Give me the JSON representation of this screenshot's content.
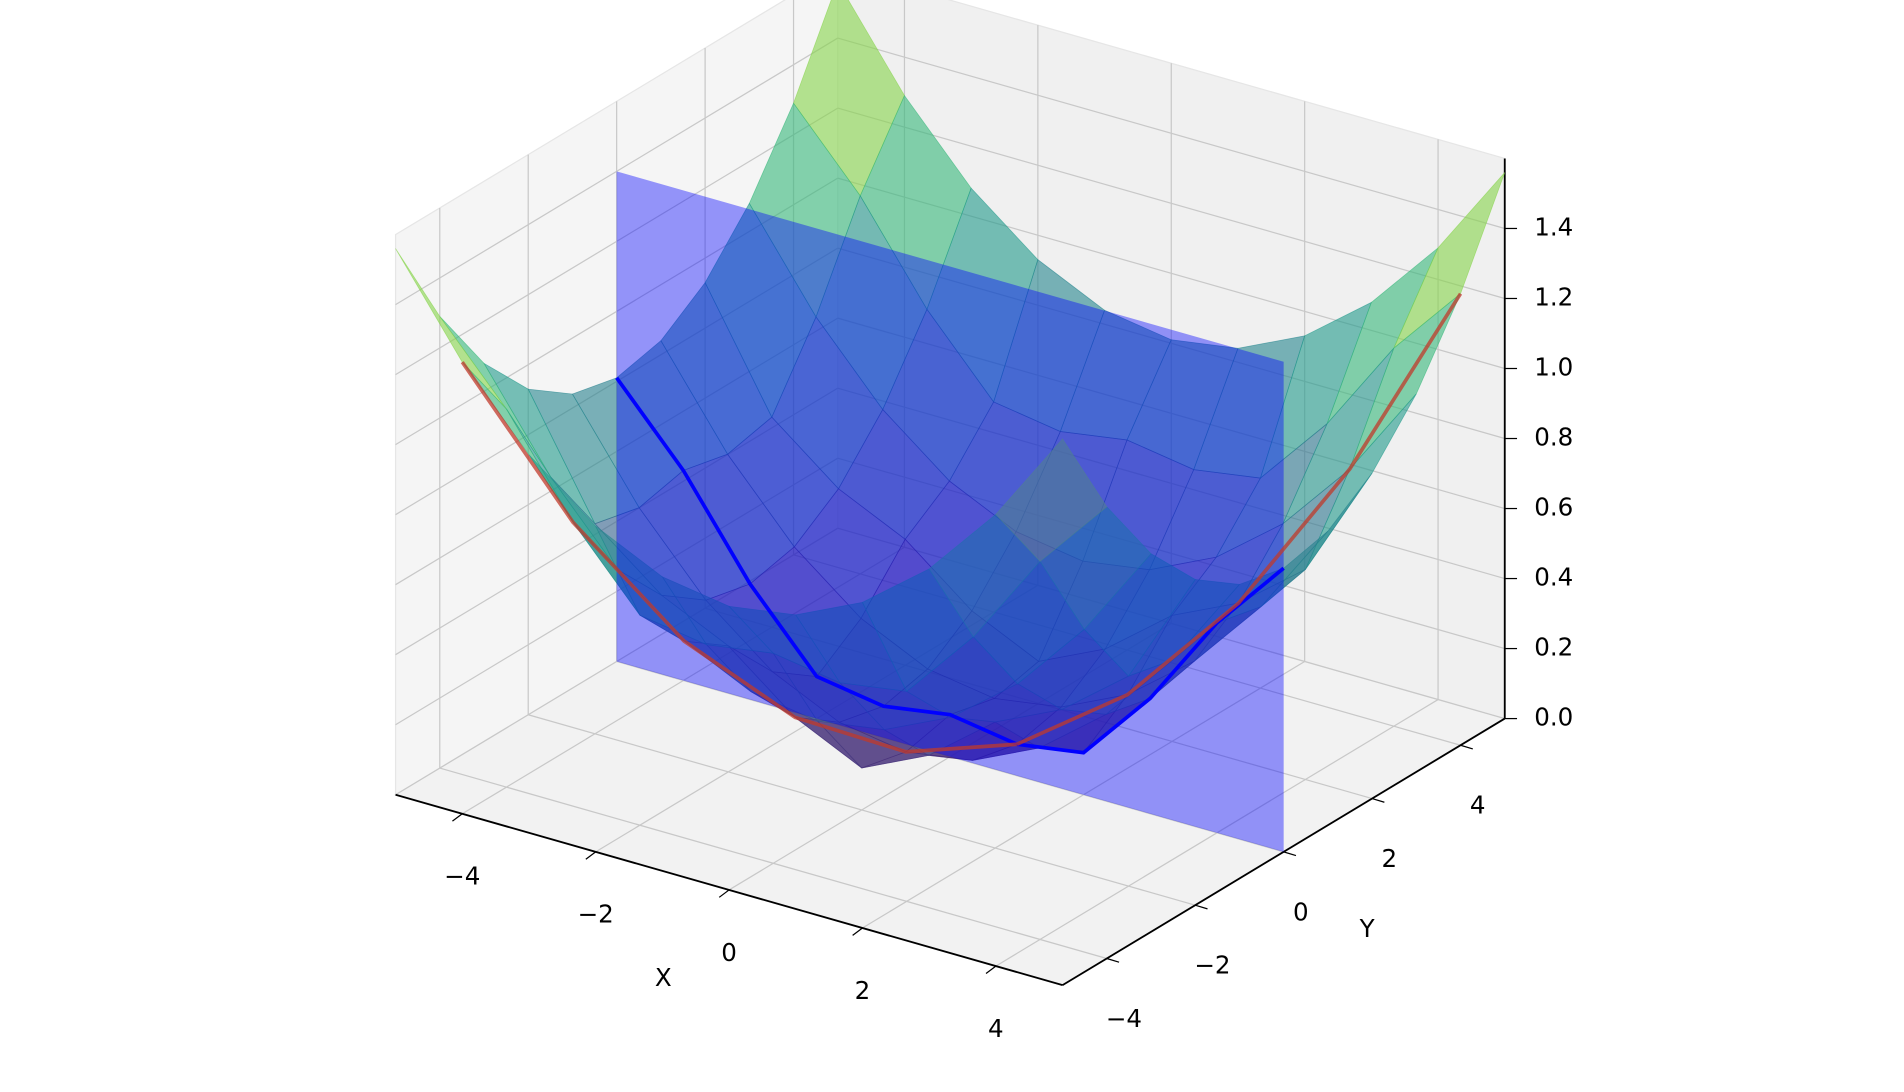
{
  "chart_data": {
    "type": "surface",
    "xlabel": "X",
    "ylabel": "Y",
    "x": [
      -5,
      -4,
      -3,
      -2,
      -1,
      0,
      1,
      2,
      3,
      4,
      5
    ],
    "y": [
      -5,
      -4,
      -3,
      -2,
      -1,
      0,
      1,
      2,
      3,
      4,
      5
    ],
    "z": [
      [
        1.56,
        1.29,
        1.08,
        0.93,
        0.84,
        0.81,
        0.84,
        0.93,
        1.08,
        1.29,
        1.56
      ],
      [
        1.29,
        1.08,
        0.81,
        0.6,
        0.57,
        0.6,
        0.57,
        0.6,
        0.81,
        1.08,
        1.29
      ],
      [
        1.08,
        0.81,
        0.6,
        0.45,
        0.36,
        0.33,
        0.36,
        0.45,
        0.6,
        0.81,
        1.08
      ],
      [
        0.93,
        0.6,
        0.45,
        0.36,
        0.21,
        0.12,
        0.21,
        0.36,
        0.45,
        0.6,
        0.93
      ],
      [
        0.84,
        0.57,
        0.36,
        0.21,
        0.12,
        0.09,
        0.12,
        0.21,
        0.36,
        0.57,
        0.84
      ],
      [
        0.81,
        0.6,
        0.33,
        0.12,
        0.09,
        0.12,
        0.09,
        0.12,
        0.33,
        0.6,
        0.81
      ],
      [
        0.84,
        0.57,
        0.36,
        0.21,
        0.12,
        0.09,
        0.12,
        0.21,
        0.36,
        0.57,
        0.84
      ],
      [
        0.93,
        0.6,
        0.45,
        0.36,
        0.21,
        0.12,
        0.21,
        0.36,
        0.45,
        0.6,
        0.93
      ],
      [
        1.08,
        0.81,
        0.6,
        0.45,
        0.36,
        0.33,
        0.36,
        0.45,
        0.6,
        0.81,
        1.08
      ],
      [
        1.29,
        1.08,
        0.81,
        0.6,
        0.57,
        0.6,
        0.57,
        0.6,
        0.81,
        1.08,
        1.29
      ],
      [
        1.56,
        1.29,
        1.08,
        0.93,
        0.84,
        0.81,
        0.84,
        0.93,
        1.08,
        1.29,
        1.56
      ]
    ],
    "xlim": [
      -5,
      5
    ],
    "ylim": [
      -5,
      5
    ],
    "zlim": [
      0,
      1.6
    ],
    "xticks": [
      {
        "value": -4,
        "label": "−4"
      },
      {
        "value": -2,
        "label": "−2"
      },
      0,
      2,
      4
    ],
    "yticks": [
      {
        "value": -4,
        "label": "−4"
      },
      {
        "value": -2,
        "label": "−2"
      },
      0,
      2,
      4
    ],
    "zticks": [
      {
        "value": 0,
        "label": "0.0"
      },
      0.2,
      0.4,
      0.6,
      0.8,
      {
        "value": 1,
        "label": "1.0"
      },
      1.2,
      1.4
    ],
    "colormap": "viridis",
    "alpha": 0.6,
    "plane": {
      "y": 0,
      "zlim": [
        0,
        1.4
      ],
      "color": "#0000ff"
    },
    "series": [
      {
        "color": "#c0392b",
        "x": [
          -4,
          -3,
          -2,
          -1,
          0,
          1
        ],
        "y": [
          -5,
          -4,
          -3,
          -2,
          -1,
          0
        ],
        "z": [
          1.29,
          0.81,
          0.45,
          0.21,
          0.09,
          0.09
        ]
      },
      {
        "color": "#c0392b",
        "x": [
          5,
          4,
          3,
          2,
          1
        ],
        "y": [
          4,
          3,
          2,
          1,
          0
        ],
        "z": [
          1.29,
          0.81,
          0.45,
          0.21,
          0.09
        ]
      }
    ]
  }
}
